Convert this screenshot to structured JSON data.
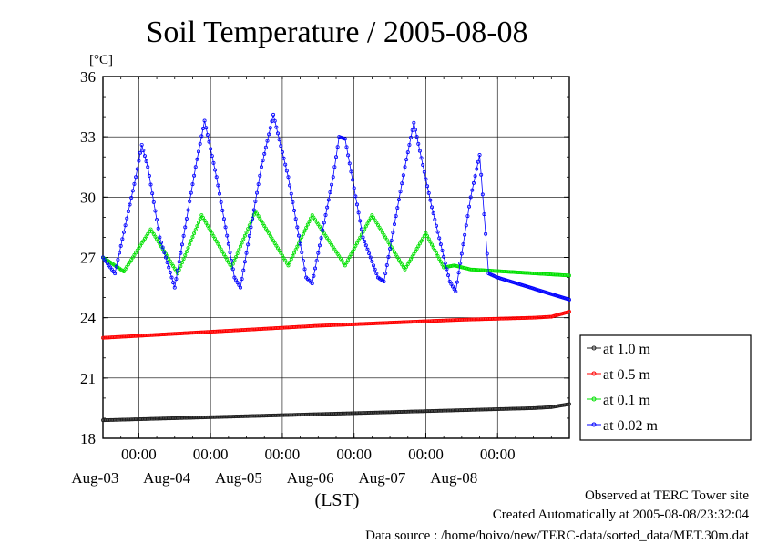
{
  "chart_data": {
    "type": "line",
    "title": "Soil Temperature / 2005-08-08",
    "ylabel_unit": "[°C]",
    "xlabel": "(LST)",
    "ylim": [
      18,
      36
    ],
    "yticks": [
      18,
      21,
      24,
      27,
      30,
      33,
      36
    ],
    "x_unit": "days",
    "xlim": [
      "2005-08-02 12:00",
      "2005-08-09 00:00"
    ],
    "time_ticks": [
      {
        "time": "2005-08-03 00:00",
        "label": "00:00",
        "date": "Aug-03"
      },
      {
        "time": "2005-08-04 00:00",
        "label": "00:00",
        "date": "Aug-04"
      },
      {
        "time": "2005-08-05 00:00",
        "label": "00:00",
        "date": "Aug-05"
      },
      {
        "time": "2005-08-06 00:00",
        "label": "00:00",
        "date": "Aug-06"
      },
      {
        "time": "2005-08-07 00:00",
        "label": "00:00",
        "date": "Aug-07"
      },
      {
        "time": "2005-08-08 00:00",
        "label": "00:00",
        "date": "Aug-08"
      }
    ],
    "grid": true,
    "legend_position": "right",
    "series": [
      {
        "name": "at 1.0 m",
        "color": "#202020",
        "points": [
          [
            "2005-08-02 12:00",
            18.9
          ],
          [
            "2005-08-03 12:00",
            19.0
          ],
          [
            "2005-08-04 12:00",
            19.1
          ],
          [
            "2005-08-05 12:00",
            19.2
          ],
          [
            "2005-08-06 12:00",
            19.3
          ],
          [
            "2005-08-07 12:00",
            19.4
          ],
          [
            "2005-08-08 12:00",
            19.5
          ],
          [
            "2005-08-08 18:00",
            19.55
          ],
          [
            "2005-08-09 00:00",
            19.7
          ]
        ]
      },
      {
        "name": "at 0.5 m",
        "color": "#ff0000",
        "points": [
          [
            "2005-08-02 12:00",
            23.0
          ],
          [
            "2005-08-03 12:00",
            23.2
          ],
          [
            "2005-08-04 12:00",
            23.4
          ],
          [
            "2005-08-05 12:00",
            23.6
          ],
          [
            "2005-08-06 12:00",
            23.75
          ],
          [
            "2005-08-07 12:00",
            23.9
          ],
          [
            "2005-08-08 12:00",
            24.0
          ],
          [
            "2005-08-08 18:00",
            24.05
          ],
          [
            "2005-08-09 00:00",
            24.3
          ]
        ]
      },
      {
        "name": "at 0.1 m",
        "color": "#00e000",
        "points": [
          [
            "2005-08-02 12:00",
            27.0
          ],
          [
            "2005-08-02 19:00",
            26.3
          ],
          [
            "2005-08-03 04:00",
            28.4
          ],
          [
            "2005-08-03 13:00",
            26.2
          ],
          [
            "2005-08-03 21:00",
            29.1
          ],
          [
            "2005-08-04 07:00",
            26.5
          ],
          [
            "2005-08-04 15:00",
            29.3
          ],
          [
            "2005-08-05 02:00",
            26.6
          ],
          [
            "2005-08-05 10:00",
            29.1
          ],
          [
            "2005-08-05 21:00",
            26.6
          ],
          [
            "2005-08-06 06:00",
            29.1
          ],
          [
            "2005-08-06 17:00",
            26.4
          ],
          [
            "2005-08-07 00:00",
            28.2
          ],
          [
            "2005-08-07 06:00",
            26.5
          ],
          [
            "2005-08-07 09:30",
            26.6
          ],
          [
            "2005-08-07 15:00",
            26.4
          ],
          [
            "2005-08-09 00:00",
            26.1
          ]
        ]
      },
      {
        "name": "at 0.02 m",
        "color": "#0000ff",
        "points": [
          [
            "2005-08-02 12:00",
            27.0
          ],
          [
            "2005-08-02 16:00",
            26.2
          ],
          [
            "2005-08-02 23:00",
            31.0
          ],
          [
            "2005-08-03 01:00",
            32.6
          ],
          [
            "2005-08-03 03:00",
            31.5
          ],
          [
            "2005-08-03 07:00",
            28.0
          ],
          [
            "2005-08-03 12:00",
            25.5
          ],
          [
            "2005-08-03 19:00",
            31.5
          ],
          [
            "2005-08-03 22:00",
            33.8
          ],
          [
            "2005-08-04 02:00",
            31.0
          ],
          [
            "2005-08-04 08:00",
            26.0
          ],
          [
            "2005-08-04 10:00",
            25.5
          ],
          [
            "2005-08-04 17:00",
            31.5
          ],
          [
            "2005-08-04 21:00",
            34.1
          ],
          [
            "2005-08-05 02:00",
            31.0
          ],
          [
            "2005-08-05 08:00",
            26.0
          ],
          [
            "2005-08-05 10:00",
            25.7
          ],
          [
            "2005-08-05 17:00",
            31.0
          ],
          [
            "2005-08-05 19:00",
            33.0
          ],
          [
            "2005-08-05 21:00",
            32.9
          ],
          [
            "2005-08-06 03:00",
            28.0
          ],
          [
            "2005-08-06 08:00",
            26.0
          ],
          [
            "2005-08-06 10:00",
            25.8
          ],
          [
            "2005-08-06 17:00",
            31.5
          ],
          [
            "2005-08-06 20:00",
            33.7
          ],
          [
            "2005-08-07 02:00",
            29.5
          ],
          [
            "2005-08-07 08:00",
            25.8
          ],
          [
            "2005-08-07 10:00",
            25.3
          ],
          [
            "2005-08-07 15:00",
            30.0
          ],
          [
            "2005-08-07 18:00",
            32.1
          ],
          [
            "2005-08-07 21:00",
            26.2
          ],
          [
            "2005-08-08 00:00",
            26.0
          ],
          [
            "2005-08-09 00:00",
            24.9
          ]
        ]
      }
    ]
  },
  "footer": {
    "observed": "Observed at TERC Tower site",
    "created": "Created Automatically at 2005-08-08/23:32:04",
    "source": "Data source : /home/hoivo/new/TERC-data/sorted_data/MET.30m.dat"
  }
}
